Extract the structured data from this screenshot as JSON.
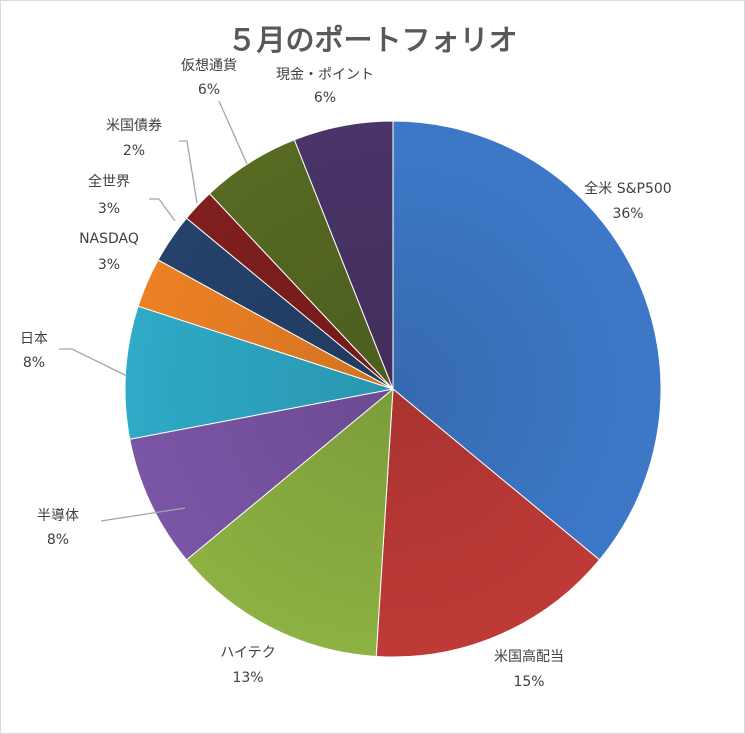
{
  "chart_data": {
    "type": "pie",
    "title": "５月のポートフォリオ",
    "slices": [
      {
        "label": "全米 S&P500",
        "value": 36,
        "value_label": "36%",
        "color": "#3d78c8"
      },
      {
        "label": "米国高配当",
        "value": 15,
        "value_label": "15%",
        "color": "#bf3a36"
      },
      {
        "label": "ハイテク",
        "value": 13,
        "value_label": "13%",
        "color": "#8db142"
      },
      {
        "label": "半導体",
        "value": 8,
        "value_label": "8%",
        "color": "#7b55a6"
      },
      {
        "label": "日本",
        "value": 8,
        "value_label": "8%",
        "color": "#2faac7"
      },
      {
        "label": "NASDAQ",
        "value": 3,
        "value_label": "3%",
        "color": "#ed8125"
      },
      {
        "label": "全世界",
        "value": 3,
        "value_label": "3%",
        "color": "#25426b"
      },
      {
        "label": "米国債券",
        "value": 2,
        "value_label": "2%",
        "color": "#801f1e"
      },
      {
        "label": "仮想通貨",
        "value": 6,
        "value_label": "6%",
        "color": "#566a22"
      },
      {
        "label": "現金・ポイント",
        "value": 6,
        "value_label": "6%",
        "color": "#4a3468"
      }
    ],
    "start_angle_deg": 0,
    "direction": "clockwise",
    "legend": "none"
  }
}
